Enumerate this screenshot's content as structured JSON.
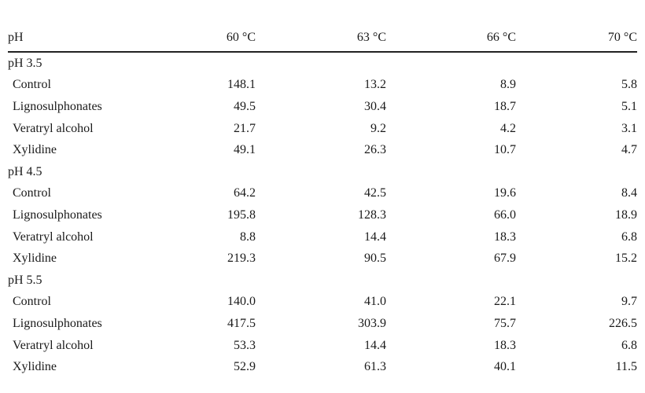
{
  "table": {
    "header": {
      "label": "pH",
      "columns": [
        "60 °C",
        "63 °C",
        "66 °C",
        "70 °C"
      ]
    },
    "groups": [
      {
        "title": "pH 3.5",
        "rows": [
          {
            "label": "Control",
            "values": [
              "148.1",
              "13.2",
              "8.9",
              "5.8"
            ]
          },
          {
            "label": "Lignosulphonates",
            "values": [
              "49.5",
              "30.4",
              "18.7",
              "5.1"
            ]
          },
          {
            "label": "Veratryl alcohol",
            "values": [
              "21.7",
              "9.2",
              "4.2",
              "3.1"
            ]
          },
          {
            "label": "Xylidine",
            "values": [
              "49.1",
              "26.3",
              "10.7",
              "4.7"
            ]
          }
        ]
      },
      {
        "title": "pH 4.5",
        "rows": [
          {
            "label": "Control",
            "values": [
              "64.2",
              "42.5",
              "19.6",
              "8.4"
            ]
          },
          {
            "label": "Lignosulphonates",
            "values": [
              "195.8",
              "128.3",
              "66.0",
              "18.9"
            ]
          },
          {
            "label": "Veratryl alcohol",
            "values": [
              "8.8",
              "14.4",
              "18.3",
              "6.8"
            ]
          },
          {
            "label": "Xylidine",
            "values": [
              "219.3",
              "90.5",
              "67.9",
              "15.2"
            ]
          }
        ]
      },
      {
        "title": "pH 5.5",
        "rows": [
          {
            "label": "Control",
            "values": [
              "140.0",
              "41.0",
              "22.1",
              "9.7"
            ]
          },
          {
            "label": "Lignosulphonates",
            "values": [
              "417.5",
              "303.9",
              "75.7",
              "226.5"
            ]
          },
          {
            "label": "Veratryl alcohol",
            "values": [
              "53.3",
              "14.4",
              "18.3",
              "6.8"
            ]
          },
          {
            "label": "Xylidine",
            "values": [
              "52.9",
              "61.3",
              "40.1",
              "11.5"
            ]
          }
        ]
      }
    ]
  }
}
